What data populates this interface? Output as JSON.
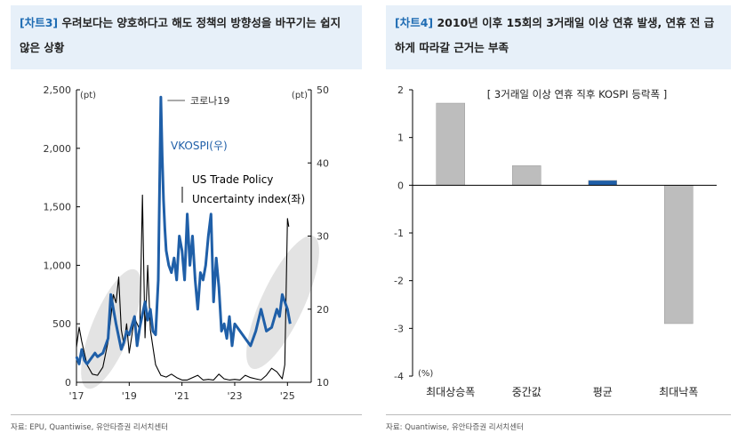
{
  "left": {
    "tag": "[차트3]",
    "title": "우려보다는 양호하다고 해도 정책의 방향성을 바꾸기는 쉽지 않은 상황",
    "source": "자료: EPU, Quantiwise, 유안타증권 리서치센터"
  },
  "right": {
    "tag": "[차트4]",
    "title": "2010년 이후 15회의 3거래일 이상 연휴 발생, 연휴 전 급하게 따라갈 근거는 부족",
    "source": "자료: Quantiwise, 유안타증권 리서치센터"
  },
  "chart_data": [
    {
      "type": "line",
      "x_ticks": [
        "'17",
        "'19",
        "'21",
        "'23",
        "'25"
      ],
      "x_range": [
        2017,
        2025.9
      ],
      "y_left": {
        "unit": "(pt)",
        "range": [
          0,
          2500
        ],
        "ticks": [
          0,
          500,
          1000,
          1500,
          2000,
          2500
        ],
        "tick_labels": [
          "0",
          "500",
          "1,000",
          "1,500",
          "2,000",
          "2,500"
        ]
      },
      "y_right": {
        "unit": "(pt)",
        "range": [
          10,
          50
        ],
        "ticks": [
          10,
          20,
          30,
          40,
          50
        ],
        "tick_labels": [
          "10",
          "20",
          "30",
          "40",
          "50"
        ]
      },
      "annotations": {
        "corona": "코로나19"
      },
      "series": [
        {
          "name": "US Trade Policy Uncertainty index(좌)",
          "axis": "left",
          "color": "#000000",
          "x": [
            2017.0,
            2017.1,
            2017.2,
            2017.4,
            2017.6,
            2017.8,
            2018.0,
            2018.2,
            2018.4,
            2018.5,
            2018.6,
            2018.7,
            2018.8,
            2018.9,
            2019.0,
            2019.2,
            2019.4,
            2019.5,
            2019.6,
            2019.7,
            2019.8,
            2019.9,
            2020.0,
            2020.2,
            2020.4,
            2020.6,
            2020.8,
            2021.0,
            2021.2,
            2021.4,
            2021.6,
            2021.8,
            2022.0,
            2022.2,
            2022.4,
            2022.6,
            2022.8,
            2023.0,
            2023.2,
            2023.4,
            2023.6,
            2023.8,
            2024.0,
            2024.2,
            2024.4,
            2024.6,
            2024.8,
            2024.9,
            2025.0,
            2025.05
          ],
          "values": [
            300,
            470,
            350,
            150,
            70,
            60,
            130,
            350,
            750,
            680,
            900,
            450,
            320,
            500,
            250,
            550,
            450,
            1600,
            380,
            1000,
            450,
            300,
            150,
            60,
            45,
            70,
            40,
            20,
            20,
            40,
            60,
            20,
            25,
            20,
            70,
            30,
            20,
            25,
            20,
            60,
            40,
            30,
            20,
            60,
            120,
            90,
            30,
            150,
            1400,
            1330
          ]
        },
        {
          "name": "VKOSPI(우)",
          "axis": "right",
          "color": "#1f5fa8",
          "x": [
            2017.0,
            2017.1,
            2017.2,
            2017.3,
            2017.4,
            2017.6,
            2017.7,
            2017.8,
            2018.0,
            2018.2,
            2018.3,
            2018.5,
            2018.7,
            2018.8,
            2018.9,
            2019.0,
            2019.2,
            2019.3,
            2019.4,
            2019.6,
            2019.7,
            2019.8,
            2019.9,
            2020.0,
            2020.1,
            2020.2,
            2020.25,
            2020.3,
            2020.35,
            2020.4,
            2020.5,
            2020.6,
            2020.7,
            2020.8,
            2020.9,
            2021.0,
            2021.1,
            2021.2,
            2021.3,
            2021.4,
            2021.5,
            2021.6,
            2021.7,
            2021.8,
            2021.9,
            2022.0,
            2022.1,
            2022.2,
            2022.3,
            2022.4,
            2022.5,
            2022.6,
            2022.7,
            2022.8,
            2022.9,
            2023.0,
            2023.2,
            2023.4,
            2023.6,
            2023.8,
            2024.0,
            2024.2,
            2024.4,
            2024.6,
            2024.7,
            2024.8,
            2024.9,
            2025.0,
            2025.1
          ],
          "values": [
            13.5,
            12.5,
            14.5,
            13,
            12.5,
            13.5,
            14,
            13.5,
            14,
            16,
            22,
            18,
            14.5,
            15.5,
            17,
            16.5,
            19,
            15,
            17.5,
            21,
            18.5,
            20,
            17,
            16.5,
            24,
            49,
            41,
            35,
            31,
            28,
            26,
            25,
            27,
            24,
            30,
            28,
            24,
            33,
            26,
            30,
            24,
            20,
            25,
            24,
            26,
            30,
            33,
            21,
            27,
            23,
            17,
            18,
            16,
            19,
            15,
            18,
            17,
            16,
            15,
            17,
            20,
            17,
            17.5,
            20,
            19,
            22,
            21,
            20,
            18
          ]
        }
      ]
    },
    {
      "type": "bar",
      "title": "[ 3거래일 이상 연휴 직후 KOSPI 등락폭 ]",
      "categories": [
        "최대상승폭",
        "중간값",
        "평균",
        "최대낙폭"
      ],
      "values": [
        1.72,
        0.41,
        0.1,
        -2.9
      ],
      "colors": [
        "#bdbdbd",
        "#bdbdbd",
        "#1f5fa8",
        "#bdbdbd"
      ],
      "ylim": [
        -4,
        2
      ],
      "yticks": [
        2,
        1,
        0,
        -1,
        -2,
        -3,
        -4
      ],
      "unit": "(%)"
    }
  ]
}
